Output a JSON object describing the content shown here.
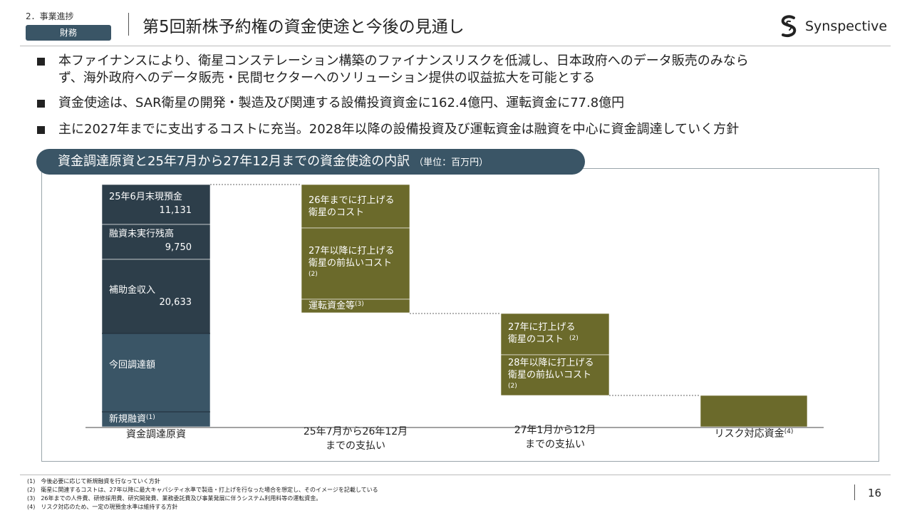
{
  "header": {
    "section": "2．事業進捗",
    "badge": "財務",
    "title": "第5回新株予約権の資金使途と今後の見通し",
    "logo_text": "Synspective"
  },
  "bullets": [
    {
      "line1": "本ファイナンスにより、衛星コンステレーション構築のファイナンスリスクを低減し、日本政府へのデータ販売のみなら",
      "line2": "ず、海外政府へのデータ販売・民間セクターへのソリューション提供の収益拡大を可能とする"
    },
    {
      "line1": "資金使途は、SAR衛星の開発・製造及び関連する設備投資資金に162.4億円、運転資金に77.8億円"
    },
    {
      "line1": "主に2027年までに支出するコストに充当。2028年以降の設備投資及び運転資金は融資を中心に資金調達していく方針"
    }
  ],
  "chart_header": {
    "title": "資金調達原資と25年7月から27年12月までの資金使途の内訳",
    "unit": "（単位：百万円）"
  },
  "chart_data": {
    "type": "bar",
    "categories": [
      {
        "label_lines": [
          "資金調達原資"
        ],
        "sup": ""
      },
      {
        "label_lines": [
          "25年7月から26年12月",
          "までの支払い"
        ],
        "sup": ""
      },
      {
        "label_lines": [
          "27年1月から12月",
          "までの支払い"
        ],
        "sup": ""
      },
      {
        "label_lines": [
          "リスク対応資金"
        ],
        "sup": "(4)"
      }
    ],
    "segments": [
      {
        "category": 0,
        "label_lines": [
          "25年6月末現預金"
        ],
        "value_label": "11,131",
        "value": 11131,
        "sup": "",
        "color": "#2d3e4a"
      },
      {
        "category": 0,
        "label_lines": [
          "融資未実行残高"
        ],
        "value_label": "9,750",
        "value": 9750,
        "sup": "",
        "color": "#2d3e4a"
      },
      {
        "category": 0,
        "label_lines": [
          "補助金収入"
        ],
        "value_label": "20,633",
        "value": 20633,
        "sup": "",
        "color": "#2d3e4a"
      },
      {
        "category": 0,
        "label_lines": [
          "今回調達額"
        ],
        "value_label": "",
        "value": null,
        "sup": "",
        "color": "#3a5566"
      },
      {
        "category": 0,
        "label_lines": [
          "新規融資"
        ],
        "value_label": "",
        "value": null,
        "sup": "(1)",
        "color": "#3a5566"
      },
      {
        "category": 1,
        "label_lines": [
          "26年までに打上げる",
          "衛星のコスト"
        ],
        "value_label": "",
        "value": null,
        "sup": "",
        "color": "#6b6a2b"
      },
      {
        "category": 1,
        "label_lines": [
          "27年以降に打上げる",
          "衛星の前払いコスト"
        ],
        "value_label": "",
        "value": null,
        "sup": "(2)",
        "color": "#6b6a2b"
      },
      {
        "category": 1,
        "label_lines": [
          "運転資金等"
        ],
        "value_label": "",
        "value": null,
        "sup": "(3)",
        "color": "#6b6a2b"
      },
      {
        "category": 2,
        "label_lines": [
          "27年に打上げる",
          "衛星のコスト"
        ],
        "value_label": "",
        "value": null,
        "sup": "(2)",
        "color": "#6b6a2b"
      },
      {
        "category": 2,
        "label_lines": [
          "28年以降に打上げる",
          "衛星の前払いコスト"
        ],
        "value_label": "",
        "value": null,
        "sup": "(2)",
        "color": "#6b6a2b"
      },
      {
        "category": 3,
        "label_lines": [],
        "value_label": "",
        "value": null,
        "sup": "",
        "color": "#6b6a2b"
      }
    ],
    "title": "資金調達原資と25年7月から27年12月までの資金使途の内訳",
    "unit": "（単位：百万円）",
    "legend": "none",
    "grid": false
  },
  "notes": [
    "(1)　今後必要に応じて新規融資を行なっていく方針",
    "(2)　衛星に関連するコストは、27年以降に最大キャパシティ水準で製造・打上げを行なった場合を想定し、そのイメージを記載している",
    "(3)　26年までの人件費、研修採用費、研究開発費、業務委託費及び事業発展に伴うシステム利用料等の運転資金。",
    "(4)　リスク対応のため、一定の現預金水準は維持する方針"
  ],
  "page_number": "16"
}
